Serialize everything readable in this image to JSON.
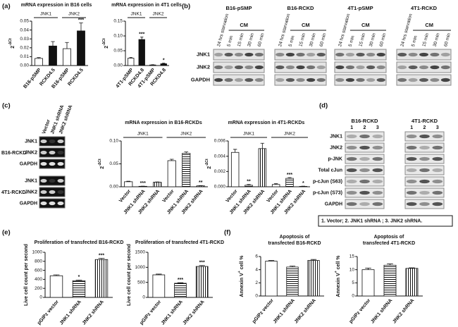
{
  "panel_labels": [
    "(a)",
    "(b)",
    "(c)",
    "(d)",
    "(e)",
    "(f)"
  ],
  "chart_data": [
    {
      "type": "bar",
      "title": "mRNA expression in B16 cells",
      "groups": [
        "JNK1",
        "JNK2"
      ],
      "categories": [
        "B16-pSMP",
        "RCKD4.5",
        "B16-pSMP",
        "RCKD4.5"
      ],
      "values": [
        0.008,
        0.022,
        0.019,
        0.039
      ],
      "errors": [
        0.001,
        0.005,
        0.007,
        0.009
      ],
      "significance": [
        null,
        null,
        null,
        "***"
      ],
      "fills": [
        "white",
        "black",
        "white",
        "black"
      ],
      "ylim": [
        0,
        0.05
      ],
      "yticks": [
        {
          "value": 0,
          "label": "0.00"
        },
        0.01,
        0.02,
        0.03,
        0.04,
        0.05
      ],
      "ylabel": [
        {
          "text": "2"
        },
        {
          "text": "-ΔCt",
          "sup": true
        }
      ]
    },
    {
      "type": "bar",
      "title": "mRNA expression in 4T1 cells",
      "groups": [
        "JNK1",
        "JNK2"
      ],
      "categories": [
        "4T1-pSMP",
        "RCKD4.8",
        "4T1-pSMP",
        "RCKD4.8"
      ],
      "values": [
        0.025,
        0.088,
        0.002,
        0.006
      ],
      "errors": [
        0.002,
        0.008,
        0.001,
        0.002
      ],
      "significance": [
        null,
        "***",
        null,
        "*"
      ],
      "fills": [
        "white",
        "black",
        "white",
        "black"
      ],
      "ylim": [
        0,
        0.15
      ],
      "yticks": [
        {
          "value": 0,
          "label": "0.00"
        },
        0.05,
        {
          "value": 0.1,
          "label": "0.10"
        },
        0.15
      ],
      "ylabel": [
        {
          "text": "2"
        },
        {
          "text": "-ΔCt",
          "sup": true
        }
      ]
    },
    {
      "type": "bar",
      "title": "mRNA expression in B16-RCKDs",
      "groups": [
        "JNK1",
        "JNK2"
      ],
      "categories": [
        "Vector",
        "JNK1 shRNA",
        "JNK2 shRNA",
        "Vector",
        "JNK1 shRNA",
        "JNK2 shRNA"
      ],
      "values": [
        0.011,
        0.001,
        0.01,
        0.057,
        0.073,
        0.002
      ],
      "errors": [
        0.001,
        0.0003,
        0.0005,
        0.003,
        0.003,
        0.0005
      ],
      "significance": [
        null,
        "***",
        null,
        null,
        null,
        "**"
      ],
      "fills": [
        "white",
        "hstripe",
        "vstripe",
        "white",
        "hstripe",
        "vstripe"
      ],
      "ylim": [
        0,
        0.1
      ],
      "yticks": [
        {
          "value": 0,
          "label": "0.00"
        },
        0.05,
        {
          "value": 0.1,
          "label": "0.10"
        }
      ],
      "ylabel": [
        {
          "text": "2"
        },
        {
          "text": "-ΔCt",
          "sup": true
        }
      ]
    },
    {
      "type": "bar",
      "title": "mRNA expression in 4T1-RCKDs",
      "groups": [
        "JNK1",
        "JNK2"
      ],
      "categories": [
        "Vector",
        "JNK1 shRNA",
        "JNK2 shRNA",
        "Vector",
        "JNK1 shRNA",
        "JNK2 shRNA"
      ],
      "values": [
        0.0045,
        0.0002,
        0.005,
        0.0003,
        0.0011,
        5e-05
      ],
      "errors": [
        0.0004,
        0.0001,
        0.0007,
        0.0001,
        0.0001,
        3e-05
      ],
      "significance": [
        null,
        "**",
        null,
        null,
        "***",
        "*"
      ],
      "fills": [
        "white",
        "hstripe",
        "vstripe",
        "white",
        "hstripe",
        "vstripe"
      ],
      "ylim": [
        0,
        0.006
      ],
      "yticks": [
        {
          "value": 0,
          "label": "0.000"
        },
        0.002,
        0.004,
        0.006
      ],
      "ylabel": [
        {
          "text": "2"
        },
        {
          "text": "-ΔCt",
          "sup": true
        }
      ]
    },
    {
      "type": "bar",
      "title": "Proliferation of transfected B16-RCKD",
      "categories": [
        "pGIPz vector",
        "JNK1 shRNA",
        "JNK2 shRNA"
      ],
      "values": [
        480,
        370,
        840
      ],
      "errors": [
        20,
        15,
        25
      ],
      "significance": [
        null,
        "*",
        "***"
      ],
      "fills": [
        "white",
        "hstripe",
        "vstripe"
      ],
      "ylim": [
        0,
        1000
      ],
      "yticks": [
        0,
        200,
        400,
        600,
        800,
        1000
      ],
      "ylabel": [
        {
          "text": "Live cell count per second"
        }
      ]
    },
    {
      "type": "bar",
      "title": "Proliferation of transfected 4T1-RCKD",
      "categories": [
        "pGIPz vector",
        "JNK1 shRNA",
        "JNK2 shRNA"
      ],
      "values": [
        750,
        470,
        1030
      ],
      "errors": [
        25,
        20,
        30
      ],
      "significance": [
        null,
        "***",
        "***"
      ],
      "fills": [
        "white",
        "hstripe",
        "vstripe"
      ],
      "ylim": [
        0,
        1500
      ],
      "yticks": [
        0,
        500,
        1000,
        1500
      ],
      "ylabel": [
        {
          "text": "Live cell count per second"
        }
      ]
    },
    {
      "type": "bar",
      "title": [
        "Apoptosis of",
        "transfected B16-RCKD"
      ],
      "categories": [
        "pGIPz vector",
        "JNK1 shRNA",
        "JNK2 shRNA"
      ],
      "values": [
        5.3,
        4.4,
        5.4
      ],
      "errors": [
        0.1,
        0.15,
        0.15
      ],
      "fills": [
        "white",
        "hstripe",
        "vstripe"
      ],
      "ylim": [
        0,
        6
      ],
      "yticks": [
        0,
        2,
        4,
        6
      ],
      "ylabel": [
        {
          "text": "Annexin V"
        },
        {
          "text": "+",
          "sup": true
        },
        {
          "text": " cell %"
        }
      ]
    },
    {
      "type": "bar",
      "title": [
        "Apoptosis of",
        "transfected 4T1-RCKD"
      ],
      "categories": [
        "pGIPz vector",
        "JNK1 shRNA",
        "JNK2 shRNA"
      ],
      "values": [
        10,
        11.7,
        10.5
      ],
      "errors": [
        0.6,
        0.5,
        0.2
      ],
      "fills": [
        "white",
        "hstripe",
        "vstripe"
      ],
      "ylim": [
        0,
        15
      ],
      "yticks": [
        0,
        5,
        10,
        15
      ],
      "ylabel": [
        {
          "text": "Annexin V"
        },
        {
          "text": "+",
          "sup": true
        },
        {
          "text": " cell %"
        }
      ]
    }
  ],
  "blots": {
    "b": {
      "groups": [
        "B16-pSMP",
        "B16-RCKD",
        "4T1-pSMP",
        "4T1-RCKD"
      ],
      "lanes": [
        "24 hrs starvation",
        "5 min",
        "15 min",
        "30 min",
        "60 min"
      ],
      "cm": "CM",
      "rows": [
        "JNK1",
        "JNK2",
        "GAPDH"
      ]
    },
    "c": {
      "lanes": [
        "Vector",
        "JNK1 shRNA",
        "JNK2 shRNA"
      ],
      "groups": [
        "B16-RCKD",
        "4T1-RCKD"
      ],
      "rows": [
        "JNK1",
        "JNK2",
        "GAPDH"
      ]
    },
    "d": {
      "groups": [
        "B16-RCKD",
        "4T1-RCKD"
      ],
      "lanes": [
        "1",
        "2",
        "3"
      ],
      "rows": [
        "JNK1",
        "JNK2",
        "p-JNK",
        "Total cJun",
        "p-cJun (S63)",
        "p-cJun (S73)",
        "GAPDH"
      ],
      "legend": "1. Vector;  2. JNK1 shRNA ; 3. JNK2 shRNA."
    }
  }
}
